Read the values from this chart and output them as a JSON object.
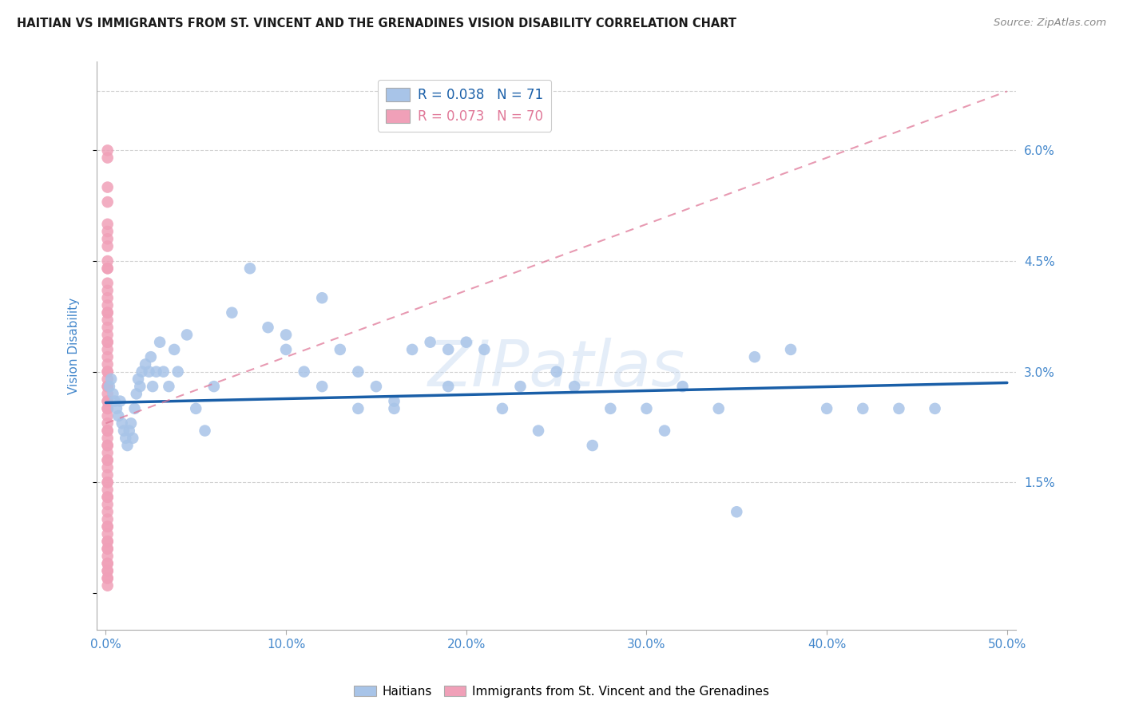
{
  "title": "HAITIAN VS IMMIGRANTS FROM ST. VINCENT AND THE GRENADINES VISION DISABILITY CORRELATION CHART",
  "source": "Source: ZipAtlas.com",
  "ylabel": "Vision Disability",
  "xlabel": "",
  "xlim": [
    -0.005,
    0.505
  ],
  "ylim": [
    -0.005,
    0.072
  ],
  "yticks": [
    0.0,
    0.015,
    0.03,
    0.045,
    0.06
  ],
  "ytick_labels": [
    "",
    "1.5%",
    "3.0%",
    "4.5%",
    "6.0%"
  ],
  "xtick_labels": [
    "0.0%",
    "10.0%",
    "20.0%",
    "30.0%",
    "40.0%",
    "50.0%"
  ],
  "xticks": [
    0.0,
    0.1,
    0.2,
    0.3,
    0.4,
    0.5
  ],
  "series1_name": "Haitians",
  "series1_R": "0.038",
  "series1_N": "71",
  "series1_color": "#a8c4e8",
  "series1_line_color": "#1a5fa8",
  "series2_name": "Immigrants from St. Vincent and the Grenadines",
  "series2_R": "0.073",
  "series2_N": "70",
  "series2_color": "#f0a0b8",
  "series2_line_color": "#e07898",
  "background_color": "#ffffff",
  "grid_color": "#cccccc",
  "title_color": "#1a1a1a",
  "axis_label_color": "#4488cc",
  "watermark": "ZIPatlas",
  "blue_line_x": [
    0.0,
    0.5
  ],
  "blue_line_y": [
    0.0258,
    0.0285
  ],
  "pink_line_x": [
    0.0,
    0.5
  ],
  "pink_line_y": [
    0.023,
    0.068
  ],
  "series1_x": [
    0.002,
    0.003,
    0.004,
    0.005,
    0.006,
    0.007,
    0.008,
    0.009,
    0.01,
    0.011,
    0.012,
    0.013,
    0.014,
    0.015,
    0.016,
    0.017,
    0.018,
    0.019,
    0.02,
    0.022,
    0.024,
    0.025,
    0.026,
    0.028,
    0.03,
    0.032,
    0.035,
    0.038,
    0.04,
    0.045,
    0.05,
    0.055,
    0.06,
    0.07,
    0.08,
    0.09,
    0.1,
    0.11,
    0.12,
    0.13,
    0.14,
    0.15,
    0.16,
    0.17,
    0.18,
    0.19,
    0.2,
    0.21,
    0.22,
    0.24,
    0.25,
    0.26,
    0.28,
    0.3,
    0.31,
    0.32,
    0.34,
    0.36,
    0.38,
    0.4,
    0.42,
    0.44,
    0.46,
    0.35,
    0.27,
    0.23,
    0.19,
    0.16,
    0.14,
    0.12,
    0.1
  ],
  "series1_y": [
    0.028,
    0.029,
    0.027,
    0.026,
    0.025,
    0.024,
    0.026,
    0.023,
    0.022,
    0.021,
    0.02,
    0.022,
    0.023,
    0.021,
    0.025,
    0.027,
    0.029,
    0.028,
    0.03,
    0.031,
    0.03,
    0.032,
    0.028,
    0.03,
    0.034,
    0.03,
    0.028,
    0.033,
    0.03,
    0.035,
    0.025,
    0.022,
    0.028,
    0.038,
    0.044,
    0.036,
    0.033,
    0.03,
    0.028,
    0.033,
    0.03,
    0.028,
    0.025,
    0.033,
    0.034,
    0.028,
    0.034,
    0.033,
    0.025,
    0.022,
    0.03,
    0.028,
    0.025,
    0.025,
    0.022,
    0.028,
    0.025,
    0.032,
    0.033,
    0.025,
    0.025,
    0.025,
    0.025,
    0.011,
    0.02,
    0.028,
    0.033,
    0.026,
    0.025,
    0.04,
    0.035
  ],
  "series2_x": [
    0.001,
    0.001,
    0.001,
    0.001,
    0.001,
    0.001,
    0.001,
    0.001,
    0.001,
    0.001,
    0.001,
    0.001,
    0.001,
    0.001,
    0.001,
    0.001,
    0.001,
    0.001,
    0.001,
    0.001,
    0.001,
    0.001,
    0.001,
    0.001,
    0.001,
    0.001,
    0.001,
    0.001,
    0.001,
    0.001,
    0.001,
    0.001,
    0.001,
    0.001,
    0.001,
    0.001,
    0.001,
    0.001,
    0.001,
    0.001,
    0.001,
    0.001,
    0.001,
    0.001,
    0.001,
    0.001,
    0.001,
    0.001,
    0.001,
    0.001,
    0.001,
    0.001,
    0.001,
    0.001,
    0.001,
    0.001,
    0.001,
    0.001,
    0.001,
    0.001,
    0.001,
    0.001,
    0.001,
    0.001,
    0.001,
    0.001,
    0.001,
    0.001,
    0.001,
    0.001
  ],
  "series2_y": [
    0.059,
    0.053,
    0.05,
    0.048,
    0.047,
    0.045,
    0.044,
    0.042,
    0.041,
    0.04,
    0.039,
    0.038,
    0.037,
    0.036,
    0.035,
    0.034,
    0.033,
    0.032,
    0.031,
    0.03,
    0.029,
    0.028,
    0.027,
    0.026,
    0.025,
    0.024,
    0.023,
    0.022,
    0.021,
    0.02,
    0.019,
    0.018,
    0.017,
    0.016,
    0.015,
    0.014,
    0.013,
    0.012,
    0.011,
    0.01,
    0.009,
    0.008,
    0.007,
    0.006,
    0.005,
    0.004,
    0.003,
    0.002,
    0.049,
    0.044,
    0.038,
    0.034,
    0.03,
    0.028,
    0.026,
    0.025,
    0.022,
    0.02,
    0.018,
    0.015,
    0.013,
    0.009,
    0.007,
    0.055,
    0.006,
    0.004,
    0.003,
    0.002,
    0.001,
    0.06
  ]
}
